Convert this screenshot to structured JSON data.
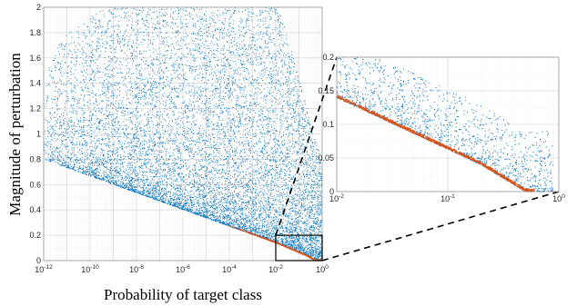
{
  "chart_data": [
    {
      "type": "scatter",
      "name": "main",
      "xlabel": "Probability of target class",
      "ylabel": "Magnitude of perturbation",
      "xscale": "log",
      "xlim": [
        1e-12,
        1
      ],
      "ylim": [
        0,
        2
      ],
      "x_ticks": [
        {
          "base": "10",
          "exp": "-12"
        },
        {
          "base": "10",
          "exp": "-10"
        },
        {
          "base": "10",
          "exp": "-8"
        },
        {
          "base": "10",
          "exp": "-6"
        },
        {
          "base": "10",
          "exp": "-4"
        },
        {
          "base": "10",
          "exp": "-2"
        },
        {
          "base": "10",
          "exp": "0"
        }
      ],
      "y_ticks": [
        "0",
        "0.2",
        "0.4",
        "0.6",
        "0.8",
        "1",
        "1.2",
        "1.4",
        "1.6",
        "1.8",
        "2"
      ],
      "grid": true,
      "series": [
        {
          "color": "#0072BD",
          "description": "blue scatter cloud above lower bound",
          "lower_bound_line": [
            [
              1e-12,
              0.8
            ],
            [
              0.01,
              0.14
            ],
            [
              0.2,
              0.04
            ],
            [
              0.5,
              0.0
            ]
          ]
        },
        {
          "color": "#D95319",
          "description": "orange points along lower bound",
          "points_line": [
            [
              0.0001,
              0.27
            ],
            [
              0.01,
              0.14
            ],
            [
              0.1,
              0.07
            ],
            [
              0.3,
              0.02
            ],
            [
              0.6,
              0.0
            ]
          ]
        }
      ],
      "highlight_box": {
        "xlim": [
          0.01,
          1
        ],
        "ylim": [
          0,
          0.2
        ]
      }
    },
    {
      "type": "scatter",
      "name": "zoom-inset",
      "xscale": "log",
      "xlim": [
        0.01,
        1
      ],
      "ylim": [
        0,
        0.2
      ],
      "x_ticks": [
        {
          "base": "10",
          "exp": "-2"
        },
        {
          "base": "10",
          "exp": "-1"
        },
        {
          "base": "10",
          "exp": "0"
        }
      ],
      "y_ticks": [
        "0",
        "0.05",
        "0.1",
        "0.15",
        "0.2"
      ],
      "grid": true,
      "colors": {
        "scatter": "#0072BD",
        "bound": "#D95319"
      }
    }
  ]
}
